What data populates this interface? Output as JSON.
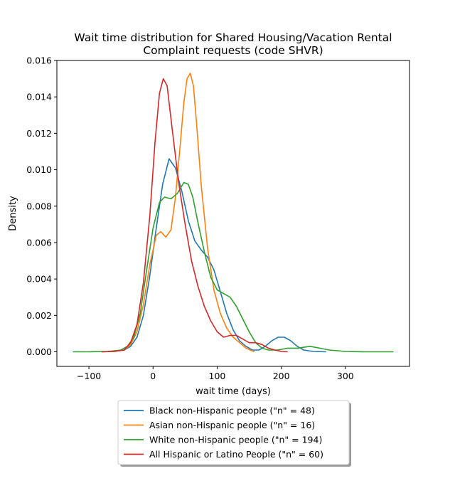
{
  "chart_data": {
    "type": "line",
    "title_line1": "Wait time distribution  for Shared Housing/Vacation Rental",
    "title_line2": "Complaint requests (code SHVR)",
    "xlabel": "wait time (days)",
    "ylabel": "Density",
    "xlim": [
      -150,
      400
    ],
    "ylim": [
      -0.0008,
      0.016
    ],
    "xticks": [
      -100,
      0,
      100,
      200,
      300
    ],
    "yticks": [
      0.0,
      0.002,
      0.004,
      0.006,
      0.008,
      0.01,
      0.012,
      0.014,
      0.016
    ],
    "ytick_labels": [
      "0.000",
      "0.002",
      "0.004",
      "0.006",
      "0.008",
      "0.010",
      "0.012",
      "0.014",
      "0.016"
    ],
    "legend_position": "below-center",
    "series": [
      {
        "name": "Black non-Hispanic people (\"n\" = 48)",
        "color": "#1f77b4",
        "points": [
          [
            -80,
            0
          ],
          [
            -60,
            3e-05
          ],
          [
            -45,
            0.0001
          ],
          [
            -35,
            0.0003
          ],
          [
            -25,
            0.0008
          ],
          [
            -15,
            0.002
          ],
          [
            -5,
            0.0042
          ],
          [
            5,
            0.0068
          ],
          [
            15,
            0.0092
          ],
          [
            25,
            0.0106
          ],
          [
            35,
            0.0101
          ],
          [
            45,
            0.0088
          ],
          [
            55,
            0.0072
          ],
          [
            65,
            0.0061
          ],
          [
            75,
            0.0056
          ],
          [
            85,
            0.0052
          ],
          [
            95,
            0.0045
          ],
          [
            105,
            0.0033
          ],
          [
            115,
            0.0021
          ],
          [
            125,
            0.0012
          ],
          [
            135,
            0.0006
          ],
          [
            145,
            0.0003
          ],
          [
            155,
            0.0001
          ],
          [
            165,
            0.0001
          ],
          [
            175,
            0.0003
          ],
          [
            185,
            0.0006
          ],
          [
            195,
            0.0008
          ],
          [
            205,
            0.0008
          ],
          [
            215,
            0.0006
          ],
          [
            225,
            0.0003
          ],
          [
            235,
            0.0001
          ],
          [
            250,
            2e-05
          ],
          [
            270,
            0
          ]
        ]
      },
      {
        "name": "Asian non-Hispanic people (\"n\" = 16)",
        "color": "#ff7f0e",
        "points": [
          [
            -80,
            0
          ],
          [
            -60,
            2e-05
          ],
          [
            -45,
            0.0001
          ],
          [
            -35,
            0.0004
          ],
          [
            -25,
            0.0011
          ],
          [
            -15,
            0.0026
          ],
          [
            -5,
            0.0048
          ],
          [
            5,
            0.0064
          ],
          [
            12,
            0.0066
          ],
          [
            20,
            0.0063
          ],
          [
            28,
            0.0067
          ],
          [
            35,
            0.0085
          ],
          [
            42,
            0.0112
          ],
          [
            48,
            0.0137
          ],
          [
            53,
            0.015
          ],
          [
            58,
            0.0153
          ],
          [
            63,
            0.0146
          ],
          [
            68,
            0.0125
          ],
          [
            75,
            0.0092
          ],
          [
            85,
            0.0057
          ],
          [
            95,
            0.0034
          ],
          [
            105,
            0.0021
          ],
          [
            115,
            0.0013
          ],
          [
            125,
            0.0008
          ],
          [
            135,
            0.0005
          ],
          [
            145,
            0.0002
          ],
          [
            158,
            0
          ]
        ]
      },
      {
        "name": "White non-Hispanic people (\"n\" = 194)",
        "color": "#2ca02c",
        "points": [
          [
            -125,
            0
          ],
          [
            -100,
            0
          ],
          [
            -70,
            2e-05
          ],
          [
            -50,
            0.0001
          ],
          [
            -40,
            0.0003
          ],
          [
            -30,
            0.0008
          ],
          [
            -20,
            0.0021
          ],
          [
            -10,
            0.0045
          ],
          [
            0,
            0.0068
          ],
          [
            10,
            0.0082
          ],
          [
            18,
            0.0085
          ],
          [
            28,
            0.0084
          ],
          [
            38,
            0.0087
          ],
          [
            48,
            0.0093
          ],
          [
            55,
            0.0092
          ],
          [
            62,
            0.0085
          ],
          [
            70,
            0.0071
          ],
          [
            80,
            0.0055
          ],
          [
            90,
            0.0041
          ],
          [
            100,
            0.0034
          ],
          [
            110,
            0.0032
          ],
          [
            120,
            0.003
          ],
          [
            130,
            0.0025
          ],
          [
            140,
            0.0018
          ],
          [
            150,
            0.0011
          ],
          [
            160,
            0.0005
          ],
          [
            170,
            0.0002
          ],
          [
            180,
            0.0001
          ],
          [
            195,
            0.0001
          ],
          [
            210,
            0.0002
          ],
          [
            225,
            0.0002
          ],
          [
            245,
            0.0003
          ],
          [
            260,
            0.0002
          ],
          [
            275,
            0.0001
          ],
          [
            300,
            2e-05
          ],
          [
            330,
            0
          ],
          [
            375,
            0
          ]
        ]
      },
      {
        "name": "All Hispanic or Latino People (\"n\" = 60)",
        "color": "#d62728",
        "points": [
          [
            -80,
            0
          ],
          [
            -60,
            3e-05
          ],
          [
            -45,
            0.0001
          ],
          [
            -35,
            0.0005
          ],
          [
            -25,
            0.0015
          ],
          [
            -15,
            0.0038
          ],
          [
            -5,
            0.0075
          ],
          [
            3,
            0.0115
          ],
          [
            10,
            0.0142
          ],
          [
            16,
            0.015
          ],
          [
            22,
            0.0146
          ],
          [
            30,
            0.0122
          ],
          [
            40,
            0.0093
          ],
          [
            50,
            0.007
          ],
          [
            60,
            0.005
          ],
          [
            70,
            0.0036
          ],
          [
            80,
            0.0025
          ],
          [
            90,
            0.0017
          ],
          [
            100,
            0.0011
          ],
          [
            110,
            0.0008
          ],
          [
            120,
            0.0009
          ],
          [
            130,
            0.0009
          ],
          [
            140,
            0.0007
          ],
          [
            150,
            0.0005
          ],
          [
            160,
            0.0005
          ],
          [
            170,
            0.0004
          ],
          [
            180,
            0.0002
          ],
          [
            190,
            0.0001
          ],
          [
            200,
            2e-05
          ],
          [
            210,
            0
          ]
        ]
      }
    ]
  }
}
